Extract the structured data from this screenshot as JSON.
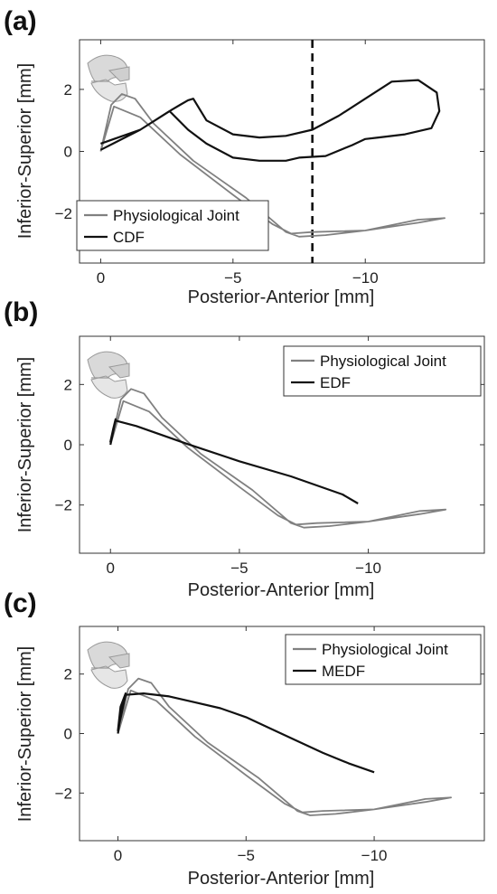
{
  "chart_data": [
    {
      "type": "line",
      "panel_label": "(a)",
      "xlabel": "Posterior-Anterior [mm]",
      "ylabel": "Inferior-Superior [mm]",
      "xlim": [
        0.8,
        -14.5
      ],
      "ylim": [
        -3.6,
        3.6
      ],
      "xticks": [
        0,
        -5,
        -10
      ],
      "xtick_labels": [
        "0",
        "−5",
        "−10"
      ],
      "yticks": [
        -2,
        0,
        2
      ],
      "ytick_labels": [
        "−2",
        "0",
        "2"
      ],
      "grid": false,
      "legend_position": "bottom-left",
      "vline": {
        "x": -8.0,
        "style": "dashed",
        "color": "#111111"
      },
      "icon": "jaw-skull-icon",
      "series": [
        {
          "name": "Physiological Joint",
          "color": "#808080",
          "x": [
            0,
            -0.4,
            -0.8,
            -1.3,
            -2.0,
            -3.5,
            -5.5,
            -7.0,
            -7.5,
            -8.5,
            -10.0,
            -12.0,
            -13.0,
            -12.0,
            -10.0,
            -8.0,
            -7.2,
            -6.5,
            -5.0,
            -3.0,
            -1.5,
            -0.5,
            0
          ],
          "y": [
            0.0,
            1.5,
            1.85,
            1.7,
            0.9,
            -0.3,
            -1.5,
            -2.6,
            -2.75,
            -2.7,
            -2.55,
            -2.3,
            -2.15,
            -2.2,
            -2.55,
            -2.6,
            -2.65,
            -2.35,
            -1.4,
            -0.1,
            1.1,
            1.45,
            0.0
          ]
        },
        {
          "name": "CDF",
          "color": "#111111",
          "x": [
            0,
            -1.5,
            -2.7,
            -3.0,
            -3.3,
            -3.5,
            -4.0,
            -5.0,
            -6.0,
            -7.0,
            -8.0,
            -9.0,
            -10.0,
            -11.0,
            -12.0,
            -12.7,
            -12.8,
            -12.5,
            -11.5,
            -10.5,
            -10.0,
            -9.5,
            -8.5,
            -7.5,
            -7.0,
            -6.0,
            -5.0,
            -4.0,
            -3.3,
            -2.6,
            -1.5,
            0
          ],
          "y": [
            0.05,
            0.7,
            1.35,
            1.5,
            1.65,
            1.7,
            1.0,
            0.55,
            0.45,
            0.5,
            0.7,
            1.15,
            1.7,
            2.25,
            2.3,
            1.9,
            1.3,
            0.75,
            0.55,
            0.45,
            0.4,
            0.2,
            -0.15,
            -0.2,
            -0.3,
            -0.3,
            -0.2,
            0.25,
            0.7,
            1.3,
            0.7,
            0.25
          ]
        }
      ]
    },
    {
      "type": "line",
      "panel_label": "(b)",
      "xlabel": "Posterior-Anterior [mm]",
      "ylabel": "Inferior-Superior [mm]",
      "xlim": [
        1.2,
        -14.5
      ],
      "ylim": [
        -3.6,
        3.6
      ],
      "xticks": [
        0,
        -5,
        -10
      ],
      "xtick_labels": [
        "0",
        "−5",
        "−10"
      ],
      "yticks": [
        -2,
        0,
        2
      ],
      "ytick_labels": [
        "−2",
        "0",
        "2"
      ],
      "grid": false,
      "legend_position": "top-right",
      "icon": "jaw-skull-icon",
      "series": [
        {
          "name": "Physiological Joint",
          "color": "#808080",
          "x": [
            0,
            -0.4,
            -0.8,
            -1.3,
            -2.0,
            -3.5,
            -5.5,
            -7.0,
            -7.5,
            -8.5,
            -10.0,
            -12.0,
            -13.0,
            -12.0,
            -10.0,
            -8.0,
            -7.2,
            -6.5,
            -5.0,
            -3.0,
            -1.5,
            -0.5,
            0
          ],
          "y": [
            0.0,
            1.5,
            1.85,
            1.7,
            0.9,
            -0.3,
            -1.5,
            -2.6,
            -2.75,
            -2.7,
            -2.55,
            -2.3,
            -2.15,
            -2.2,
            -2.55,
            -2.6,
            -2.65,
            -2.35,
            -1.4,
            -0.1,
            1.1,
            1.45,
            0.0
          ]
        },
        {
          "name": "EDF",
          "color": "#111111",
          "x": [
            0,
            -0.1,
            -0.2,
            -0.1,
            0,
            -0.2,
            -1.0,
            -3.0,
            -5.0,
            -7.0,
            -9.0,
            -9.6
          ],
          "y": [
            0.0,
            0.4,
            0.85,
            0.5,
            0.1,
            0.8,
            0.62,
            0.02,
            -0.55,
            -1.05,
            -1.65,
            -1.95
          ]
        }
      ]
    },
    {
      "type": "line",
      "panel_label": "(c)",
      "xlabel": "Posterior-Anterior [mm]",
      "ylabel": "Inferior-Superior [mm]",
      "xlim": [
        1.5,
        -14.3
      ],
      "ylim": [
        -3.6,
        3.6
      ],
      "xticks": [
        0,
        -5,
        -10
      ],
      "xtick_labels": [
        "0",
        "−5",
        "−10"
      ],
      "yticks": [
        -2,
        0,
        2
      ],
      "ytick_labels": [
        "−2",
        "0",
        "2"
      ],
      "grid": false,
      "legend_position": "top-right",
      "icon": "jaw-skull-icon",
      "series": [
        {
          "name": "Physiological Joint",
          "color": "#808080",
          "x": [
            0,
            -0.4,
            -0.8,
            -1.3,
            -2.0,
            -3.5,
            -5.5,
            -7.0,
            -7.5,
            -8.5,
            -10.0,
            -12.0,
            -13.0,
            -12.0,
            -10.0,
            -8.0,
            -7.2,
            -6.5,
            -5.0,
            -3.0,
            -1.5,
            -0.5,
            0
          ],
          "y": [
            0.0,
            1.5,
            1.85,
            1.7,
            0.9,
            -0.3,
            -1.5,
            -2.6,
            -2.75,
            -2.7,
            -2.55,
            -2.3,
            -2.15,
            -2.2,
            -2.55,
            -2.6,
            -2.65,
            -2.35,
            -1.4,
            -0.1,
            1.1,
            1.45,
            0.0
          ]
        },
        {
          "name": "MEDF",
          "color": "#111111",
          "x": [
            0,
            -0.1,
            -0.3,
            -0.1,
            0,
            -0.3,
            -1.0,
            -2.0,
            -3.0,
            -4.0,
            -5.0,
            -6.0,
            -7.0,
            -8.0,
            -9.0,
            -10.0
          ],
          "y": [
            0.0,
            0.6,
            1.35,
            0.9,
            0.1,
            1.3,
            1.35,
            1.25,
            1.05,
            0.85,
            0.55,
            0.15,
            -0.25,
            -0.65,
            -1.0,
            -1.3
          ]
        }
      ]
    }
  ]
}
